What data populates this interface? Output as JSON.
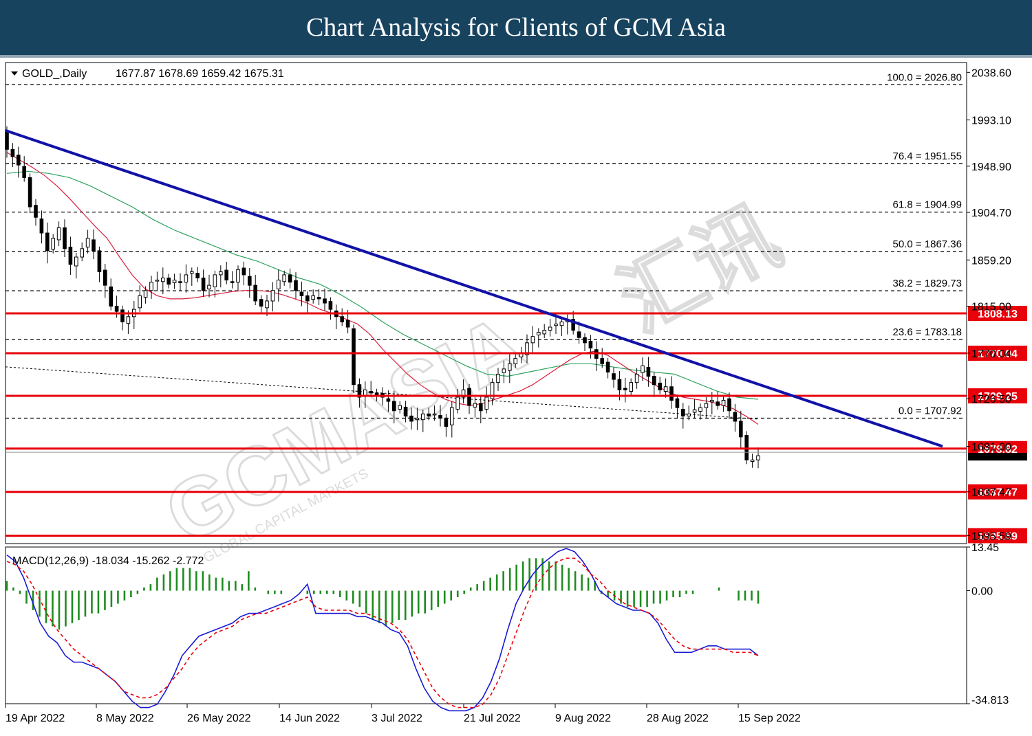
{
  "header": {
    "title": "Chart Analysis for Clients of GCM Asia"
  },
  "chart_data": {
    "type": "candlestick",
    "symbol_label": "GOLD_,Daily",
    "ohlc_label": "1677.87 1678.69 1659.42 1675.31",
    "price_axis": {
      "ticks": [
        "2038.60",
        "1993.10",
        "1948.90",
        "1904.70",
        "1859.20",
        "1815.00",
        "1770.04",
        "1726.50",
        "1681.00",
        "1637.47",
        "1595.59"
      ],
      "range": [
        1588,
        2048
      ]
    },
    "time_axis": [
      "19 Apr 2022",
      "8 May 2022",
      "26 May 2022",
      "14 Jun 2022",
      "3 Jul 2022",
      "21 Jul 2022",
      "9 Aug 2022",
      "28 Aug 2022",
      "15 Sep 2022"
    ],
    "fibonacci": [
      {
        "label": "100.0 = 2026.80",
        "value": 2026.8
      },
      {
        "label": "76.4 = 1951.55",
        "value": 1951.55
      },
      {
        "label": "61.8 = 1904.99",
        "value": 1904.99
      },
      {
        "label": "50.0 = 1867.36",
        "value": 1867.36
      },
      {
        "label": "38.2 = 1829.73",
        "value": 1829.73
      },
      {
        "label": "23.6 = 1783.18",
        "value": 1783.18
      },
      {
        "label": "0.0 = 1707.92",
        "value": 1707.92
      }
    ],
    "levels": [
      {
        "label": "1808.13",
        "value": 1808.13
      },
      {
        "label": "1770.04",
        "value": 1770.04
      },
      {
        "label": "1729.25",
        "value": 1729.25
      },
      {
        "label": "1678.82",
        "value": 1678.82
      },
      {
        "label": "1637.47",
        "value": 1637.47
      },
      {
        "label": "1595.59",
        "value": 1595.59
      }
    ],
    "last_price": "1675.31",
    "trendline": {
      "from": 1983,
      "to": 1681
    },
    "close": [
      1965,
      1958,
      1950,
      1938,
      1910,
      1900,
      1885,
      1868,
      1880,
      1890,
      1870,
      1855,
      1862,
      1870,
      1880,
      1868,
      1848,
      1835,
      1815,
      1810,
      1800,
      1805,
      1812,
      1825,
      1830,
      1838,
      1840,
      1842,
      1836,
      1840,
      1838,
      1845,
      1848,
      1842,
      1830,
      1835,
      1845,
      1848,
      1840,
      1838,
      1850,
      1845,
      1835,
      1820,
      1815,
      1820,
      1830,
      1840,
      1845,
      1838,
      1830,
      1825,
      1820,
      1825,
      1822,
      1818,
      1812,
      1805,
      1800,
      1795,
      1740,
      1728,
      1735,
      1732,
      1730,
      1728,
      1724,
      1715,
      1720,
      1710,
      1705,
      1708,
      1712,
      1710,
      1712,
      1708,
      1700,
      1718,
      1728,
      1735,
      1720,
      1722,
      1715,
      1728,
      1742,
      1750,
      1755,
      1760,
      1765,
      1770,
      1780,
      1786,
      1790,
      1792,
      1795,
      1798,
      1800,
      1801,
      1792,
      1785,
      1780,
      1775,
      1765,
      1760,
      1752,
      1745,
      1735,
      1735,
      1742,
      1750,
      1758,
      1748,
      1740,
      1735,
      1738,
      1725,
      1718,
      1710,
      1712,
      1716,
      1718,
      1722,
      1725,
      1720,
      1725,
      1715,
      1705,
      1690,
      1668,
      1668,
      1672
    ],
    "ma_red": [
      1962,
      1955,
      1948,
      1940,
      1930,
      1918,
      1905,
      1892,
      1880,
      1862,
      1845,
      1832,
      1825,
      1822,
      1822,
      1823,
      1825,
      1827,
      1829,
      1830,
      1830,
      1829,
      1826,
      1822,
      1818,
      1812,
      1808,
      1803,
      1798,
      1788,
      1774,
      1762,
      1750,
      1740,
      1732,
      1726,
      1722,
      1720,
      1722,
      1726,
      1730,
      1734,
      1740,
      1748,
      1756,
      1764,
      1770,
      1772,
      1768,
      1760,
      1752,
      1745,
      1738,
      1732,
      1728,
      1726,
      1724,
      1721,
      1717,
      1710,
      1702
    ],
    "ma_green": [
      1942,
      1944,
      1942,
      1938,
      1930,
      1920,
      1910,
      1898,
      1888,
      1880,
      1872,
      1864,
      1858,
      1850,
      1842,
      1836,
      1826,
      1814,
      1800,
      1788,
      1778,
      1768,
      1758,
      1750,
      1748,
      1752,
      1756,
      1760,
      1760,
      1757,
      1754,
      1752,
      1750,
      1742,
      1734,
      1728,
      1726
    ],
    "macd": {
      "label": "MACD(12,26,9) -18.034 -15.262 -2.772",
      "axis": {
        "top": "13.45",
        "zero": "0.00",
        "bottom": "-34.813",
        "range": [
          -34.813,
          13.45
        ]
      },
      "hist": [
        3,
        1,
        -1,
        -4,
        -6,
        -8,
        -10,
        -11,
        -12,
        -11,
        -10,
        -9,
        -8,
        -7,
        -7,
        -6,
        -5,
        -4,
        -3,
        -2,
        -1,
        1,
        2,
        4,
        5,
        6,
        7,
        7,
        7,
        6,
        6,
        5,
        4,
        4,
        3,
        3,
        2,
        6,
        1,
        0,
        -1,
        -1,
        -1,
        0,
        0,
        0,
        -1,
        -1,
        -1,
        -1,
        -1,
        -2,
        -3,
        -4,
        -5,
        -7,
        -9,
        -10,
        -11,
        -10,
        -9,
        -9,
        -8,
        -7,
        -7,
        -6,
        -5,
        -4,
        -3,
        -2,
        -1,
        1,
        2,
        3,
        4,
        5,
        6,
        7,
        8,
        9,
        10,
        10,
        10,
        9,
        9,
        8,
        7,
        6,
        5,
        4,
        3,
        -1,
        -2,
        -3,
        -4,
        -5,
        -5,
        -5,
        -5,
        -4,
        -4,
        -3,
        -2,
        -2,
        -1,
        -1,
        0,
        0,
        0,
        1,
        0,
        0,
        -3,
        -3,
        -3,
        -4
      ],
      "main": [
        11,
        9,
        4,
        -3,
        -10,
        -14,
        -16,
        -20,
        -22,
        -22,
        -23,
        -24,
        -26,
        -28,
        -31,
        -34,
        -36,
        -36,
        -35,
        -31,
        -26,
        -20,
        -17,
        -14,
        -13,
        -12,
        -11,
        -10,
        -8,
        -7,
        -7,
        -6,
        -5,
        -4,
        -3,
        -1,
        2,
        -7,
        -7,
        -7,
        -7,
        -7,
        -8,
        -8,
        -9,
        -10,
        -12,
        -13,
        -17,
        -24,
        -30,
        -34,
        -36,
        -37,
        -37,
        -37,
        -36,
        -33,
        -28,
        -21,
        -12,
        -4,
        1,
        5,
        8,
        10,
        12,
        13,
        12,
        9,
        5,
        0,
        -2,
        -4,
        -5,
        -6,
        -6,
        -7,
        -10,
        -15,
        -19,
        -19,
        -19,
        -18,
        -17,
        -17,
        -18,
        -18,
        -18,
        -18,
        -20
      ],
      "signal": [
        9,
        8,
        6,
        2,
        -3,
        -8,
        -12,
        -15,
        -18,
        -20,
        -22,
        -24,
        -26,
        -28,
        -31,
        -32,
        -33,
        -33,
        -32,
        -30,
        -27,
        -24,
        -20,
        -17,
        -15,
        -13,
        -12,
        -11,
        -9,
        -8,
        -7,
        -7,
        -6,
        -5,
        -4,
        -3,
        -2,
        -5,
        -6,
        -6,
        -6,
        -6,
        -7,
        -7,
        -8,
        -9,
        -10,
        -12,
        -15,
        -20,
        -25,
        -30,
        -33,
        -35,
        -36,
        -36,
        -36,
        -35,
        -32,
        -27,
        -20,
        -13,
        -6,
        0,
        4,
        7,
        9,
        10,
        10,
        8,
        5,
        3,
        0,
        -2,
        -4,
        -5,
        -6,
        -7,
        -9,
        -12,
        -15,
        -17,
        -18,
        -18,
        -18,
        -18,
        -18,
        -19,
        -19,
        -19,
        -20
      ]
    }
  },
  "watermark": {
    "brand": "GCMASIA",
    "tagline": "GLOBAL CAPITAL MARKETS",
    "cn": "汇讯"
  }
}
